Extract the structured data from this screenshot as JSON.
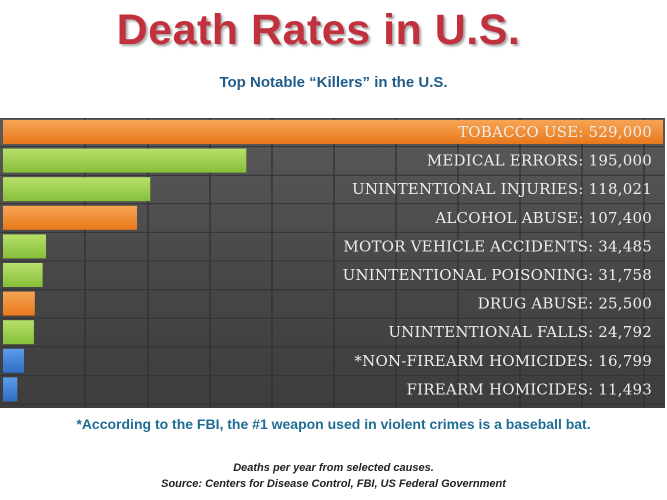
{
  "title": "Death Rates in U.S.",
  "subtitle": "Top Notable “Killers” in the U.S.",
  "footnote": "*According to the FBI, the #1 weapon used in violent crimes is a baseball bat.",
  "caption_line1": "Deaths per year from selected causes.",
  "caption_line2": "Source: Centers for Disease Control, FBI, US Federal Government",
  "colors": {
    "orange": "#f08a2c",
    "green": "#9ccf4e",
    "blue": "#3d7fd6",
    "panel": "#4a4a4a",
    "title": "#c0313d"
  },
  "chart_data": {
    "type": "bar",
    "orientation": "horizontal",
    "grid": true,
    "xlim": [
      0,
      529000
    ],
    "categories": [
      "TOBACCO USE",
      "MEDICAL ERRORS",
      "UNINTENTIONAL INJURIES",
      "ALCOHOL ABUSE",
      "MOTOR VEHICLE ACCIDENTS",
      "UNINTENTIONAL POISONING",
      "DRUG ABUSE",
      "UNINTENTIONAL FALLS",
      "*NON-FIREARM HOMICIDES",
      "FIREARM HOMICIDES"
    ],
    "values": [
      529000,
      195000,
      118021,
      107400,
      34485,
      31758,
      25500,
      24792,
      16799,
      11493
    ],
    "labels": [
      "TOBACCO USE: 529,000",
      "MEDICAL ERRORS: 195,000",
      "UNINTENTIONAL INJURIES: 118,021",
      "ALCOHOL ABUSE: 107,400",
      "MOTOR VEHICLE ACCIDENTS:  34,485",
      "UNINTENTIONAL POISONING:  31,758",
      "DRUG ABUSE:  25,500",
      "UNINTENTIONAL FALLS:  24,792",
      "*NON-FIREARM HOMICIDES:  16,799",
      "FIREARM HOMICIDES:  11,493"
    ],
    "bar_colors": [
      "orange",
      "green",
      "green",
      "orange",
      "green",
      "green",
      "orange",
      "green",
      "blue",
      "blue"
    ]
  }
}
